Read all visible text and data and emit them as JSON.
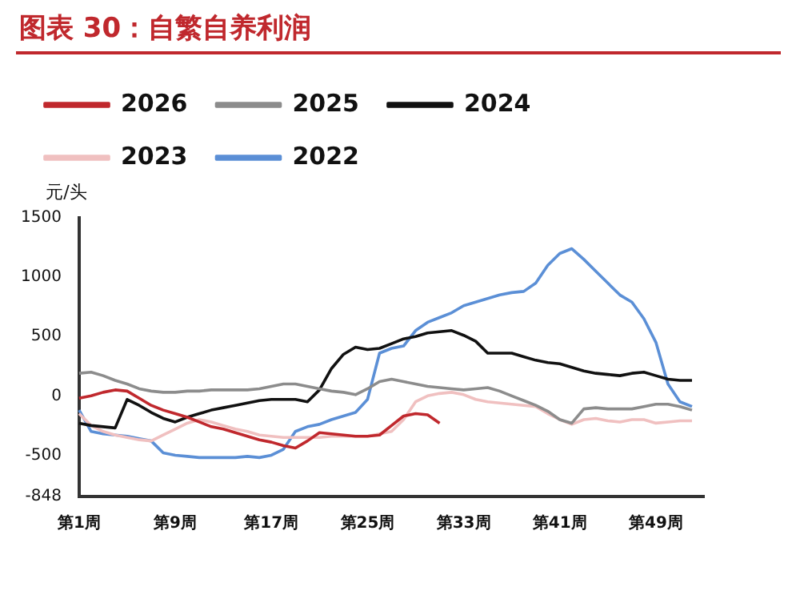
{
  "chart_data": {
    "type": "line",
    "title": "图表 30：自繁自养利润",
    "ylabel": "元/头",
    "categories": [
      "第1周",
      null,
      null,
      null,
      null,
      null,
      null,
      null,
      "第9周",
      null,
      null,
      null,
      null,
      null,
      null,
      null,
      "第17周",
      null,
      null,
      null,
      null,
      null,
      null,
      null,
      "第25周",
      null,
      null,
      null,
      null,
      null,
      null,
      null,
      "第33周",
      null,
      null,
      null,
      null,
      null,
      null,
      null,
      "第41周",
      null,
      null,
      null,
      null,
      null,
      null,
      null,
      "第49周",
      null,
      null,
      null,
      null
    ],
    "series": [
      {
        "name": "2026",
        "color": "#c0282d",
        "values": [
          -20,
          0,
          30,
          50,
          40,
          -20,
          -80,
          -120,
          -150,
          -180,
          -220,
          -260,
          -280,
          -310,
          -340,
          -370,
          -390,
          -420,
          -440,
          -380,
          -310,
          -320,
          -330,
          -340,
          -340,
          -330,
          -250,
          -170,
          -150,
          -160,
          -230,
          null,
          null,
          null,
          null,
          null,
          null,
          null,
          null,
          null,
          null,
          null,
          null,
          null,
          null,
          null,
          null,
          null,
          null,
          null,
          null,
          null,
          null
        ]
      },
      {
        "name": "2025",
        "color": "#8c8c8c",
        "values": [
          190,
          200,
          170,
          130,
          100,
          60,
          40,
          30,
          30,
          40,
          40,
          50,
          50,
          50,
          50,
          60,
          80,
          100,
          100,
          80,
          60,
          40,
          30,
          10,
          60,
          120,
          140,
          120,
          100,
          80,
          70,
          60,
          50,
          60,
          70,
          40,
          0,
          -40,
          -80,
          -130,
          -200,
          -230,
          -110,
          -100,
          -110,
          -110,
          -110,
          -90,
          -70,
          -70,
          -90,
          -120,
          null
        ]
      },
      {
        "name": "2024",
        "color": "#111111",
        "values": [
          -230,
          -250,
          -260,
          -270,
          -30,
          -80,
          -140,
          -190,
          -220,
          -180,
          -150,
          -120,
          -100,
          -80,
          -60,
          -40,
          -30,
          -30,
          -30,
          -50,
          50,
          230,
          350,
          410,
          390,
          400,
          440,
          480,
          500,
          530,
          540,
          550,
          510,
          460,
          360,
          360,
          360,
          330,
          300,
          280,
          270,
          240,
          210,
          190,
          180,
          170,
          190,
          200,
          170,
          140,
          130,
          130,
          null
        ]
      },
      {
        "name": "2023",
        "color": "#f0c0c0",
        "values": [
          -150,
          -250,
          -300,
          -330,
          -350,
          -370,
          -380,
          -330,
          -280,
          -230,
          -200,
          -220,
          -250,
          -280,
          -300,
          -330,
          -340,
          -350,
          -350,
          -350,
          -350,
          -340,
          -340,
          -340,
          -340,
          -320,
          -300,
          -200,
          -50,
          0,
          20,
          30,
          10,
          -30,
          -50,
          -60,
          -70,
          -80,
          -90,
          -150,
          -200,
          -240,
          -200,
          -190,
          -210,
          -220,
          -200,
          -200,
          -230,
          -220,
          -210,
          -210,
          null
        ]
      },
      {
        "name": "2022",
        "color": "#5b8fd6",
        "values": [
          -120,
          -300,
          -320,
          -330,
          -340,
          -360,
          -380,
          -480,
          -500,
          -510,
          -520,
          -520,
          -520,
          -520,
          -510,
          -520,
          -500,
          -450,
          -300,
          -260,
          -240,
          -200,
          -170,
          -140,
          -30,
          360,
          400,
          420,
          550,
          620,
          660,
          700,
          760,
          790,
          820,
          850,
          870,
          880,
          950,
          1100,
          1200,
          1240,
          1150,
          1050,
          950,
          850,
          790,
          650,
          450,
          100,
          -50,
          -90,
          null
        ]
      }
    ],
    "ylim": [
      -848,
      1500
    ],
    "yticks": [
      -848,
      -500,
      0,
      500,
      1000,
      1500
    ],
    "grid": false,
    "legend": "top left",
    "marker": "none",
    "line_style": "solid"
  }
}
